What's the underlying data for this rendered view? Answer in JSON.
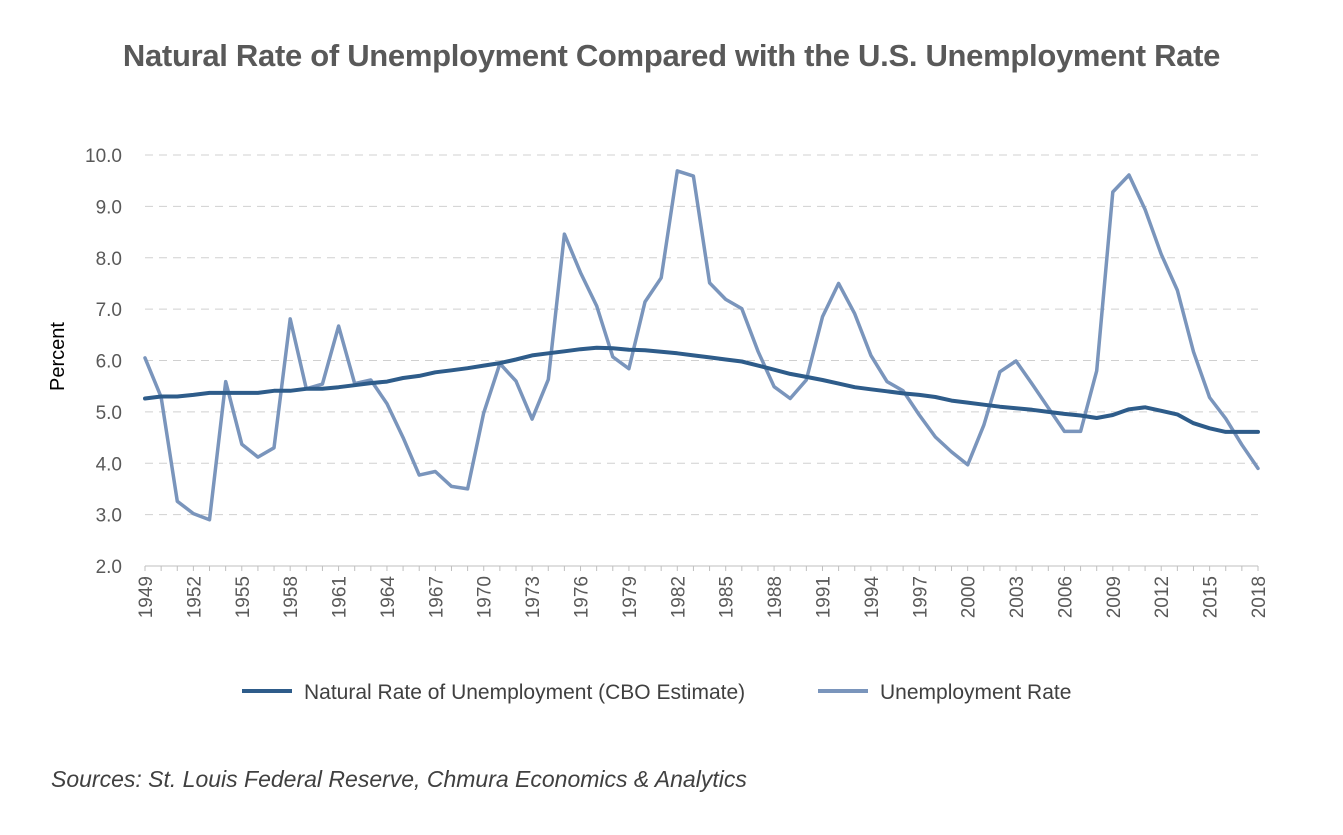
{
  "chart_data": {
    "type": "line",
    "title": "Natural Rate of Unemployment Compared with the U.S. Unemployment Rate",
    "ylabel": "Percent",
    "xlabel": "",
    "ylim": [
      2.0,
      10.0
    ],
    "yticks": [
      "2.0",
      "3.0",
      "4.0",
      "5.0",
      "6.0",
      "7.0",
      "8.0",
      "9.0",
      "10.0"
    ],
    "grid": true,
    "legend": "bottom",
    "x": [
      1949,
      1950,
      1951,
      1952,
      1953,
      1954,
      1955,
      1956,
      1957,
      1958,
      1959,
      1960,
      1961,
      1962,
      1963,
      1964,
      1965,
      1966,
      1967,
      1968,
      1969,
      1970,
      1971,
      1972,
      1973,
      1974,
      1975,
      1976,
      1977,
      1978,
      1979,
      1980,
      1981,
      1982,
      1983,
      1984,
      1985,
      1986,
      1987,
      1988,
      1989,
      1990,
      1991,
      1992,
      1993,
      1994,
      1995,
      1996,
      1997,
      1998,
      1999,
      2000,
      2001,
      2002,
      2003,
      2004,
      2005,
      2006,
      2007,
      2008,
      2009,
      2010,
      2011,
      2012,
      2013,
      2014,
      2015,
      2016,
      2017,
      2018
    ],
    "xtick_labels": [
      "1949",
      "1952",
      "1955",
      "1958",
      "1961",
      "1964",
      "1967",
      "1970",
      "1973",
      "1976",
      "1979",
      "1982",
      "1985",
      "1988",
      "1991",
      "1994",
      "1997",
      "2000",
      "2003",
      "2006",
      "2009",
      "2012",
      "2015",
      "2018"
    ],
    "series": [
      {
        "name": "Natural Rate of Unemployment (CBO Estimate)",
        "color": "#2E5C8A",
        "values": [
          5.26,
          5.3,
          5.3,
          5.33,
          5.37,
          5.37,
          5.37,
          5.37,
          5.41,
          5.41,
          5.45,
          5.45,
          5.48,
          5.52,
          5.56,
          5.59,
          5.66,
          5.7,
          5.77,
          5.81,
          5.85,
          5.9,
          5.95,
          6.02,
          6.1,
          6.14,
          6.18,
          6.22,
          6.25,
          6.24,
          6.21,
          6.2,
          6.17,
          6.14,
          6.1,
          6.06,
          6.02,
          5.98,
          5.9,
          5.82,
          5.74,
          5.68,
          5.62,
          5.55,
          5.48,
          5.44,
          5.4,
          5.36,
          5.33,
          5.29,
          5.22,
          5.18,
          5.14,
          5.1,
          5.07,
          5.04,
          5.0,
          4.96,
          4.93,
          4.88,
          4.94,
          5.05,
          5.09,
          5.02,
          4.95,
          4.78,
          4.68,
          4.61,
          4.61,
          4.61
        ]
      },
      {
        "name": "Unemployment Rate",
        "color": "#7A95BC",
        "values": [
          6.05,
          5.29,
          3.26,
          3.02,
          2.9,
          5.59,
          4.37,
          4.12,
          4.3,
          6.81,
          5.45,
          5.54,
          6.67,
          5.55,
          5.62,
          5.16,
          4.5,
          3.77,
          3.84,
          3.55,
          3.5,
          4.98,
          5.94,
          5.6,
          4.86,
          5.63,
          8.46,
          7.71,
          7.06,
          6.07,
          5.84,
          7.14,
          7.61,
          9.69,
          9.59,
          7.51,
          7.19,
          7.01,
          6.18,
          5.49,
          5.26,
          5.62,
          6.85,
          7.5,
          6.91,
          6.1,
          5.59,
          5.41,
          4.94,
          4.51,
          4.22,
          3.97,
          4.74,
          5.78,
          5.99,
          5.54,
          5.08,
          4.62,
          4.62,
          5.8,
          9.28,
          9.61,
          8.94,
          8.07,
          7.37,
          6.17,
          5.28,
          4.87,
          4.36,
          3.9
        ]
      }
    ]
  },
  "source_note": "Sources: St. Louis Federal Reserve, Chmura Economics & Analytics"
}
